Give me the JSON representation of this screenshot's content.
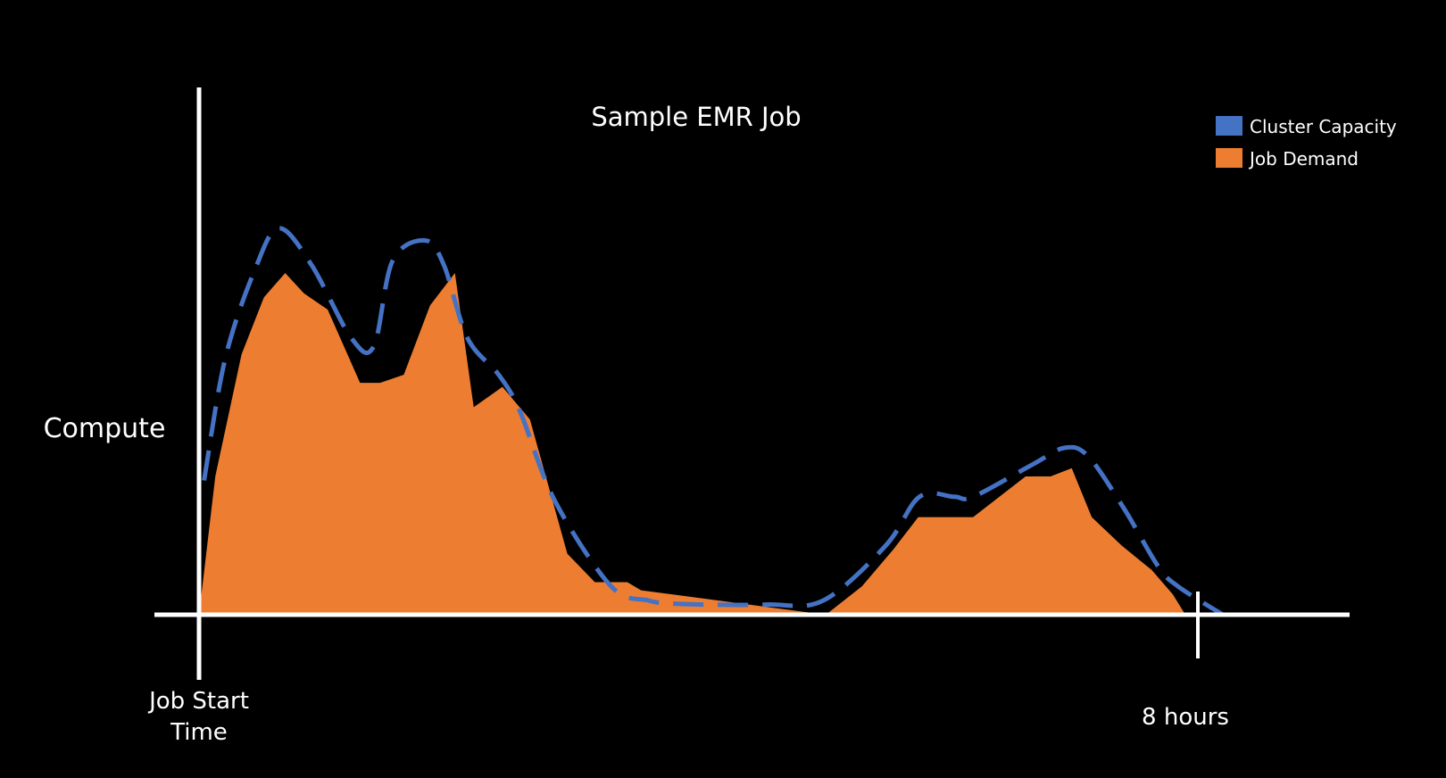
{
  "chart_data": {
    "type": "area",
    "title": "Sample EMR Job",
    "ylabel": "Compute",
    "xlabel": "",
    "x_tick_labels": [
      {
        "x": 0,
        "lines": [
          "Job Start",
          "Time"
        ]
      },
      {
        "x": 8,
        "lines": [
          "8 hours"
        ]
      }
    ],
    "xlim": [
      0,
      9.1
    ],
    "ylim": [
      0,
      10
    ],
    "grid": false,
    "legend": "top-right",
    "series": [
      {
        "name": "Cluster Capacity",
        "color": "#4472C4",
        "style": "dashed-line",
        "x": [
          0.04,
          0.21,
          0.45,
          0.64,
          0.9,
          1.22,
          1.4,
          1.55,
          1.81,
          1.96,
          2.15,
          2.4,
          2.57,
          2.85,
          3.3,
          3.6,
          3.77,
          4.04,
          4.55,
          5.0,
          5.5,
          5.77,
          6.05,
          6.2,
          6.68,
          6.93,
          7.12,
          7.41,
          7.68,
          7.84,
          8.2
        ],
        "y": [
          3.3,
          6.3,
          8.5,
          9.5,
          8.6,
          6.8,
          6.6,
          8.7,
          9.2,
          8.6,
          6.8,
          5.9,
          5.0,
          2.8,
          0.7,
          0.35,
          0.28,
          0.25,
          0.25,
          0.35,
          1.7,
          2.9,
          2.9,
          2.9,
          3.7,
          4.1,
          3.9,
          2.6,
          1.2,
          0.7,
          0.0
        ]
      },
      {
        "name": "Job Demand",
        "color": "#ED7D31",
        "style": "filled-area",
        "x": [
          0.0,
          0.13,
          0.34,
          0.52,
          0.69,
          0.84,
          1.03,
          1.29,
          1.45,
          1.64,
          1.85,
          2.05,
          2.2,
          2.43,
          2.65,
          2.95,
          3.17,
          3.43,
          3.54,
          5.02,
          5.31,
          5.56,
          5.76,
          6.2,
          6.62,
          6.82,
          6.99,
          7.15,
          7.39,
          7.63,
          7.8,
          7.9
        ],
        "y": [
          0.0,
          3.4,
          6.4,
          7.8,
          8.4,
          7.9,
          7.5,
          5.7,
          5.7,
          5.9,
          7.6,
          8.4,
          5.1,
          5.6,
          4.8,
          1.5,
          0.8,
          0.8,
          0.6,
          0.0,
          0.7,
          1.6,
          2.4,
          2.4,
          3.4,
          3.4,
          3.6,
          2.4,
          1.7,
          1.1,
          0.5,
          0.0
        ]
      }
    ]
  }
}
